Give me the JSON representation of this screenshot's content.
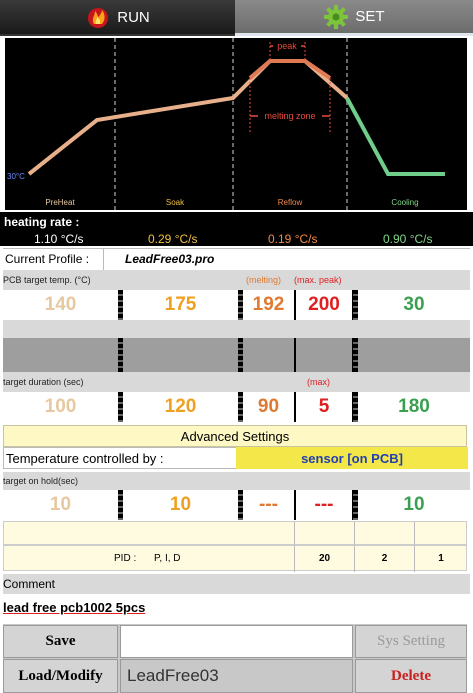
{
  "tabs": {
    "run": {
      "label": "RUN",
      "icon": "fire-icon",
      "active": false
    },
    "set": {
      "label": "SET",
      "icon": "gear-icon",
      "active": true
    }
  },
  "chart": {
    "type": "line",
    "start_label": "30°C",
    "zones": [
      "PreHeat",
      "Soak",
      "Reflow",
      "Cooling"
    ],
    "annotations": {
      "peak": "peak",
      "melting_zone": "melting zone"
    },
    "colors": {
      "heating": "#e8b08a",
      "reflow": "#e07a55",
      "cooling": "#6fce8a",
      "marker": "#e84a3c"
    }
  },
  "heating_rate": {
    "label": "heating rate :",
    "values": [
      {
        "text": "1.10 °C/s",
        "color": "#ffffff"
      },
      {
        "text": "0.29 °C/s",
        "color": "#f0c040"
      },
      {
        "text": "0.19 °C/s",
        "color": "#f08a4a"
      },
      {
        "text": "0.90 °C/s",
        "color": "#7fd88a"
      }
    ]
  },
  "profile": {
    "label": "Current Profile :",
    "name": "LeadFree03.pro"
  },
  "pcb_temp": {
    "label": "PCB target temp. (°C)",
    "melting_label": "(melting)",
    "max_peak_label": "(max. peak)",
    "values": [
      "140",
      "175",
      "192",
      "200",
      "30"
    ],
    "colors": [
      "#e8c8a0",
      "#f0a020",
      "#e07a30",
      "#e02020",
      "#3aa050"
    ]
  },
  "duration": {
    "label": "target duration (sec)",
    "max_label": "(max)",
    "values": [
      "100",
      "120",
      "90",
      "5",
      "180"
    ],
    "colors": [
      "#e8c8a0",
      "#f0a020",
      "#e07a30",
      "#e02020",
      "#3aa050"
    ]
  },
  "advanced": {
    "label": "Advanced Settings"
  },
  "temp_control": {
    "label": "Temperature controlled by :",
    "value": "sensor [on PCB]"
  },
  "hold": {
    "label": "target on hold(sec)",
    "values": [
      "10",
      "10",
      "---",
      "---",
      "10"
    ],
    "colors": [
      "#e8c8a0",
      "#f0a020",
      "#e07a30",
      "#e02020",
      "#3aa050"
    ]
  },
  "pid": {
    "label": "PID :",
    "params": "P, I, D",
    "values": [
      "20",
      "2",
      "1"
    ]
  },
  "comment": {
    "label": "Comment",
    "text": "lead free pcb1002 5pcs"
  },
  "buttons": {
    "save": "Save",
    "sys_setting": "Sys Setting",
    "load_modify": "Load/Modify",
    "profile_name": "LeadFree03",
    "delete": "Delete"
  }
}
